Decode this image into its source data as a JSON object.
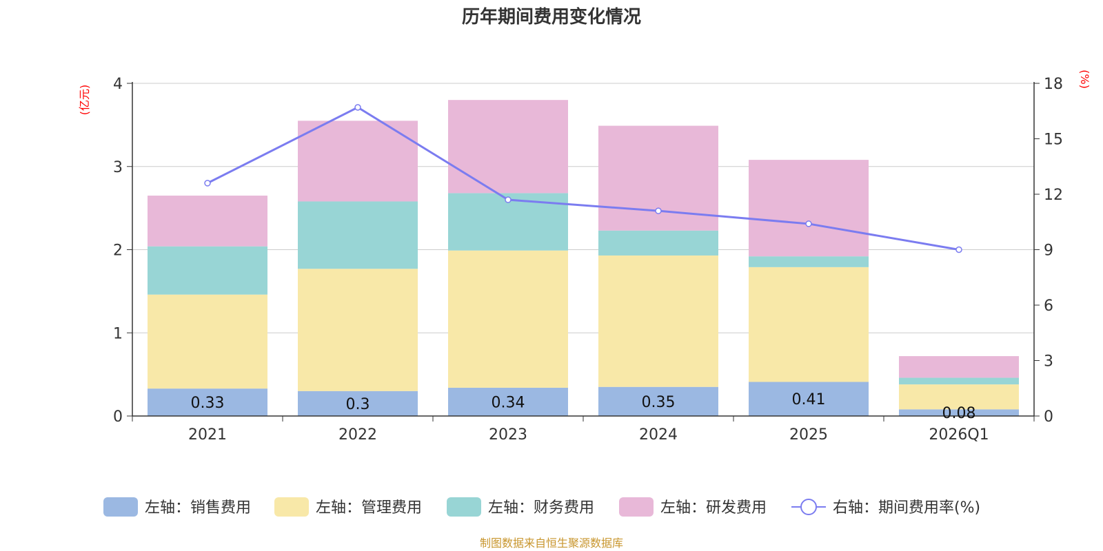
{
  "chart_data": {
    "type": "bar",
    "title": "历年期间费用变化情况",
    "categories": [
      "2021",
      "2022",
      "2023",
      "2024",
      "2025",
      "2026Q1"
    ],
    "left_axis": {
      "unit": "(亿元)",
      "ylim": [
        0,
        4
      ],
      "ticks": [
        0,
        1,
        2,
        3,
        4
      ]
    },
    "right_axis": {
      "unit": "(%)",
      "ylim": [
        0,
        18
      ],
      "ticks": [
        0,
        3,
        6,
        9,
        12,
        15,
        18
      ]
    },
    "series": [
      {
        "name": "左轴：销售费用",
        "type": "bar",
        "color": "#9bb8e2",
        "values": [
          0.33,
          0.3,
          0.34,
          0.35,
          0.41,
          0.08
        ],
        "labels": [
          "0.33",
          "0.3",
          "0.34",
          "0.35",
          "0.41",
          "0.08"
        ]
      },
      {
        "name": "左轴：管理费用",
        "type": "bar",
        "color": "#f8e8a8",
        "values": [
          1.13,
          1.47,
          1.65,
          1.58,
          1.38,
          0.3
        ]
      },
      {
        "name": "左轴：财务费用",
        "type": "bar",
        "color": "#98d5d5",
        "values": [
          0.58,
          0.81,
          0.69,
          0.3,
          0.13,
          0.08
        ]
      },
      {
        "name": "左轴：研发费用",
        "type": "bar",
        "color": "#e8b8d8",
        "values": [
          0.61,
          0.97,
          1.12,
          1.26,
          1.16,
          0.26
        ]
      },
      {
        "name": "右轴：期间费用率(%)",
        "type": "line",
        "axis": "right",
        "color": "#7b7cf0",
        "values": [
          12.6,
          16.7,
          11.7,
          11.1,
          10.4,
          9.0
        ]
      }
    ]
  },
  "footer": {
    "source": "制图数据来自恒生聚源数据库"
  }
}
